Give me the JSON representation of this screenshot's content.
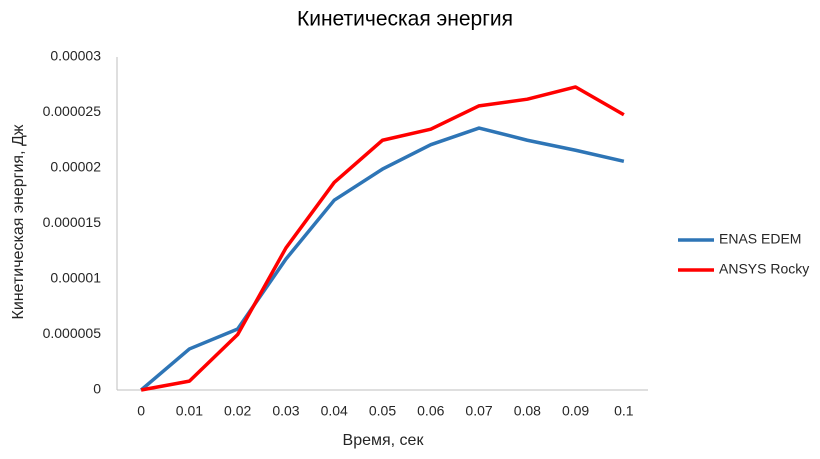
{
  "chart_data": {
    "type": "line",
    "title": "Кинетическая энергия",
    "x_label": "Время, сек",
    "y_label": "Кинетическая энергия, Дж",
    "categories": [
      "0",
      "0.01",
      "0.02",
      "0.03",
      "0.04",
      "0.05",
      "0.06",
      "0.07",
      "0.08",
      "0.09",
      "0.1"
    ],
    "series": [
      {
        "name": "ENAS EDEM",
        "color": "#2e75b6",
        "values": [
          0,
          3.7e-06,
          5.5e-06,
          1.18e-05,
          1.71e-05,
          1.99e-05,
          2.21e-05,
          2.36e-05,
          2.25e-05,
          2.16e-05,
          2.06e-05
        ]
      },
      {
        "name": "ANSYS Rocky",
        "color": "#ff0000",
        "values": [
          0,
          8e-07,
          5e-06,
          1.28e-05,
          1.87e-05,
          2.25e-05,
          2.35e-05,
          2.56e-05,
          2.62e-05,
          2.73e-05,
          2.48e-05
        ]
      }
    ],
    "ylim": [
      0,
      3e-05
    ],
    "yticks": [
      0,
      5e-06,
      1e-05,
      1.5e-05,
      2e-05,
      2.5e-05,
      3e-05
    ],
    "grid": false,
    "legend": "right"
  }
}
